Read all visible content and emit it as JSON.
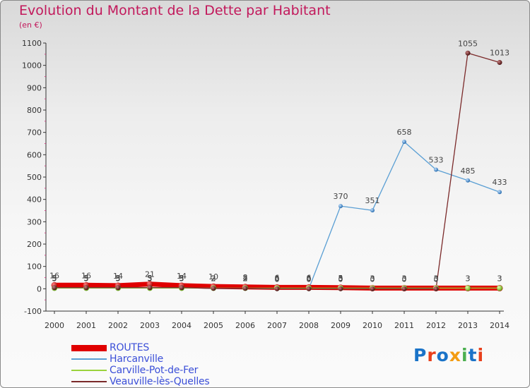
{
  "header": {
    "title": "Evolution du Montant de la Dette par Habitant",
    "subtitle": "(en €)"
  },
  "logo": {
    "text": "Proxiti",
    "colors": [
      "#1a73c8",
      "#e8401c",
      "#1a73c8",
      "#f39c12",
      "#4caf50",
      "#1a73c8",
      "#e8401c"
    ]
  },
  "chart_data": {
    "type": "line",
    "title": "Evolution du Montant de la Dette par Habitant",
    "subtitle": "(en €)",
    "xlabel": "",
    "ylabel": "",
    "categories": [
      "2000",
      "2001",
      "2002",
      "2003",
      "2004",
      "2005",
      "2006",
      "2007",
      "2008",
      "2009",
      "2010",
      "2011",
      "2012",
      "2013",
      "2014"
    ],
    "ylim": [
      -100,
      1100
    ],
    "yticks": [
      -100,
      0,
      100,
      200,
      300,
      400,
      500,
      600,
      700,
      800,
      900,
      1000,
      1100
    ],
    "grid": false,
    "legend_position": "bottom-left",
    "series": [
      {
        "name": "ROUTES",
        "color": "#e00000",
        "width": 7,
        "values": [
          16,
          16,
          14,
          21,
          14,
          10,
          8,
          6,
          6,
          5,
          3,
          3,
          3,
          3,
          3
        ],
        "labels": [
          "16",
          "16",
          "14",
          "21",
          "14",
          "10",
          "8",
          "6",
          "6",
          "5",
          "3",
          "3",
          "3",
          "3",
          "3"
        ]
      },
      {
        "name": "Harcanville",
        "color": "#5a9fd4",
        "width": 1.3,
        "values": [
          5,
          5,
          5,
          5,
          5,
          2,
          2,
          0,
          0,
          370,
          351,
          658,
          533,
          485,
          433
        ],
        "labels": [
          "5",
          "5",
          "5",
          "5",
          "5",
          "2",
          "2",
          "0",
          "0",
          "370",
          "351",
          "658",
          "533",
          "485",
          "433"
        ]
      },
      {
        "name": "Carville-Pot-de-Fer",
        "color": "#9ad33c",
        "width": 1.3,
        "values": [
          3,
          3,
          3,
          3,
          3,
          3,
          3,
          3,
          3,
          3,
          3,
          3,
          3,
          3,
          3
        ],
        "labels": [
          "3",
          "3",
          "3",
          "3",
          "3",
          "3",
          "3",
          "3",
          "3",
          "3",
          "3",
          "3",
          "3",
          "3",
          "3"
        ]
      },
      {
        "name": "Veauville-lès-Quelles",
        "color": "#7b2a2a",
        "width": 1.3,
        "values": [
          5,
          5,
          5,
          5,
          5,
          2,
          2,
          0,
          0,
          0,
          0,
          0,
          0,
          1055,
          1013
        ],
        "labels": [
          "5",
          "5",
          "5",
          "5",
          "5",
          "2",
          "2",
          "0",
          "0",
          "0",
          "0",
          "0",
          "0",
          "1055",
          "1013"
        ]
      }
    ]
  }
}
